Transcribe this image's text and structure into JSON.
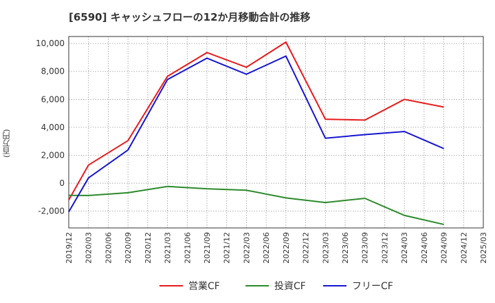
{
  "chart_data": {
    "type": "line",
    "title": "[6590]  キャッシュフローの12か月移動合計の推移",
    "ylabel": "(百万円)",
    "xlabel": "",
    "ylim": [
      -3200,
      10500
    ],
    "yticks": [
      -2000,
      0,
      2000,
      4000,
      6000,
      8000,
      10000
    ],
    "ytick_labels": [
      "-2,000",
      "0",
      "2,000",
      "4,000",
      "6,000",
      "8,000",
      "10,000"
    ],
    "x_ticks": [
      "2019/12",
      "2020/03",
      "2020/06",
      "2020/09",
      "2020/12",
      "2021/03",
      "2021/06",
      "2021/09",
      "2021/12",
      "2022/03",
      "2022/06",
      "2022/09",
      "2022/12",
      "2023/03",
      "2023/06",
      "2023/09",
      "2023/12",
      "2024/03",
      "2024/06",
      "2024/09",
      "2024/12",
      "2025/03"
    ],
    "grid": true,
    "legend_position": "bottom",
    "series": [
      {
        "name": "営業CF",
        "color": "#e8191a",
        "x": [
          "2019/12",
          "2020/03",
          "2020/09",
          "2021/03",
          "2021/09",
          "2022/03",
          "2022/09",
          "2023/03",
          "2023/09",
          "2024/03",
          "2024/09"
        ],
        "values": [
          -1200,
          1300,
          3050,
          7650,
          9350,
          8300,
          10100,
          4580,
          4520,
          6000,
          5450
        ]
      },
      {
        "name": "投資CF",
        "color": "#2a8a2a",
        "x": [
          "2019/12",
          "2020/03",
          "2020/09",
          "2021/03",
          "2021/09",
          "2022/03",
          "2022/09",
          "2023/03",
          "2023/09",
          "2024/03",
          "2024/09"
        ],
        "values": [
          -870,
          -880,
          -680,
          -230,
          -400,
          -500,
          -1050,
          -1380,
          -1080,
          -2300,
          -2950
        ]
      },
      {
        "name": "フリーCF",
        "color": "#1414d2",
        "x": [
          "2019/12",
          "2020/03",
          "2020/09",
          "2021/03",
          "2021/09",
          "2022/03",
          "2022/09",
          "2023/03",
          "2023/09",
          "2024/03",
          "2024/09"
        ],
        "values": [
          -2050,
          380,
          2380,
          7420,
          8950,
          7800,
          9100,
          3220,
          3480,
          3700,
          2480
        ]
      }
    ]
  }
}
